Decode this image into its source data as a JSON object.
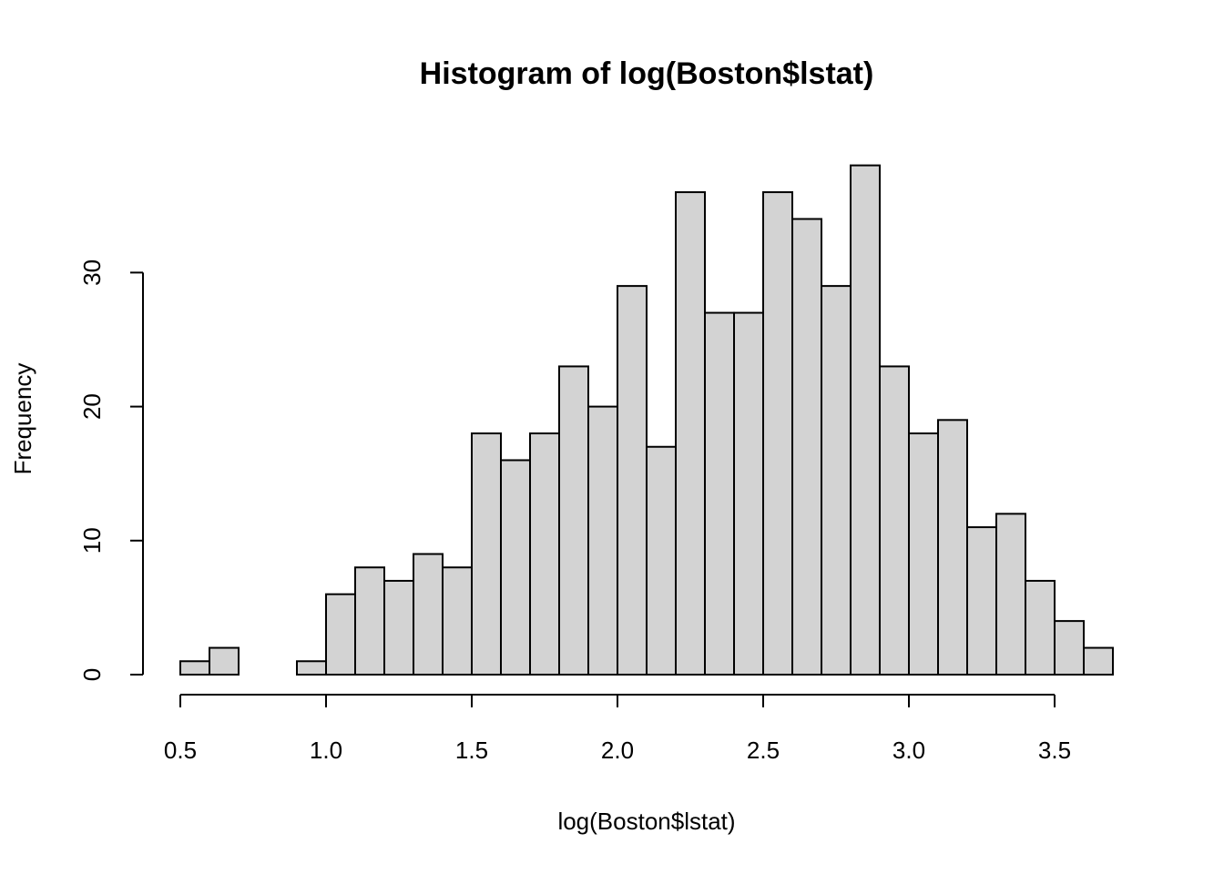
{
  "chart_data": {
    "type": "bar",
    "title": "Histogram of log(Boston$lstat)",
    "xlabel": "log(Boston$lstat)",
    "ylabel": "Frequency",
    "bin_width": 0.1,
    "bins": [
      {
        "x0": 0.5,
        "x1": 0.6,
        "count": 1
      },
      {
        "x0": 0.6,
        "x1": 0.7,
        "count": 2
      },
      {
        "x0": 0.7,
        "x1": 0.8,
        "count": 0
      },
      {
        "x0": 0.8,
        "x1": 0.9,
        "count": 0
      },
      {
        "x0": 0.9,
        "x1": 1.0,
        "count": 1
      },
      {
        "x0": 1.0,
        "x1": 1.1,
        "count": 6
      },
      {
        "x0": 1.1,
        "x1": 1.2,
        "count": 8
      },
      {
        "x0": 1.2,
        "x1": 1.3,
        "count": 7
      },
      {
        "x0": 1.3,
        "x1": 1.4,
        "count": 9
      },
      {
        "x0": 1.4,
        "x1": 1.5,
        "count": 8
      },
      {
        "x0": 1.5,
        "x1": 1.6,
        "count": 18
      },
      {
        "x0": 1.6,
        "x1": 1.7,
        "count": 16
      },
      {
        "x0": 1.7,
        "x1": 1.8,
        "count": 18
      },
      {
        "x0": 1.8,
        "x1": 1.9,
        "count": 23
      },
      {
        "x0": 1.9,
        "x1": 2.0,
        "count": 20
      },
      {
        "x0": 2.0,
        "x1": 2.1,
        "count": 29
      },
      {
        "x0": 2.1,
        "x1": 2.2,
        "count": 17
      },
      {
        "x0": 2.2,
        "x1": 2.3,
        "count": 36
      },
      {
        "x0": 2.3,
        "x1": 2.4,
        "count": 27
      },
      {
        "x0": 2.4,
        "x1": 2.5,
        "count": 27
      },
      {
        "x0": 2.5,
        "x1": 2.6,
        "count": 36
      },
      {
        "x0": 2.6,
        "x1": 2.7,
        "count": 34
      },
      {
        "x0": 2.7,
        "x1": 2.8,
        "count": 29
      },
      {
        "x0": 2.8,
        "x1": 2.9,
        "count": 38
      },
      {
        "x0": 2.9,
        "x1": 3.0,
        "count": 23
      },
      {
        "x0": 3.0,
        "x1": 3.1,
        "count": 18
      },
      {
        "x0": 3.1,
        "x1": 3.2,
        "count": 19
      },
      {
        "x0": 3.2,
        "x1": 3.3,
        "count": 11
      },
      {
        "x0": 3.3,
        "x1": 3.4,
        "count": 12
      },
      {
        "x0": 3.4,
        "x1": 3.5,
        "count": 7
      },
      {
        "x0": 3.5,
        "x1": 3.6,
        "count": 4
      },
      {
        "x0": 3.6,
        "x1": 3.7,
        "count": 2
      }
    ],
    "x_ticks": [
      "0.5",
      "1.0",
      "1.5",
      "2.0",
      "2.5",
      "3.0",
      "3.5"
    ],
    "y_ticks": [
      "0",
      "10",
      "20",
      "30"
    ],
    "xlim": [
      0.5,
      3.7
    ],
    "ylim": [
      0,
      38
    ],
    "bar_color": "#d3d3d3",
    "edge_color": "#000000",
    "grid": false
  }
}
